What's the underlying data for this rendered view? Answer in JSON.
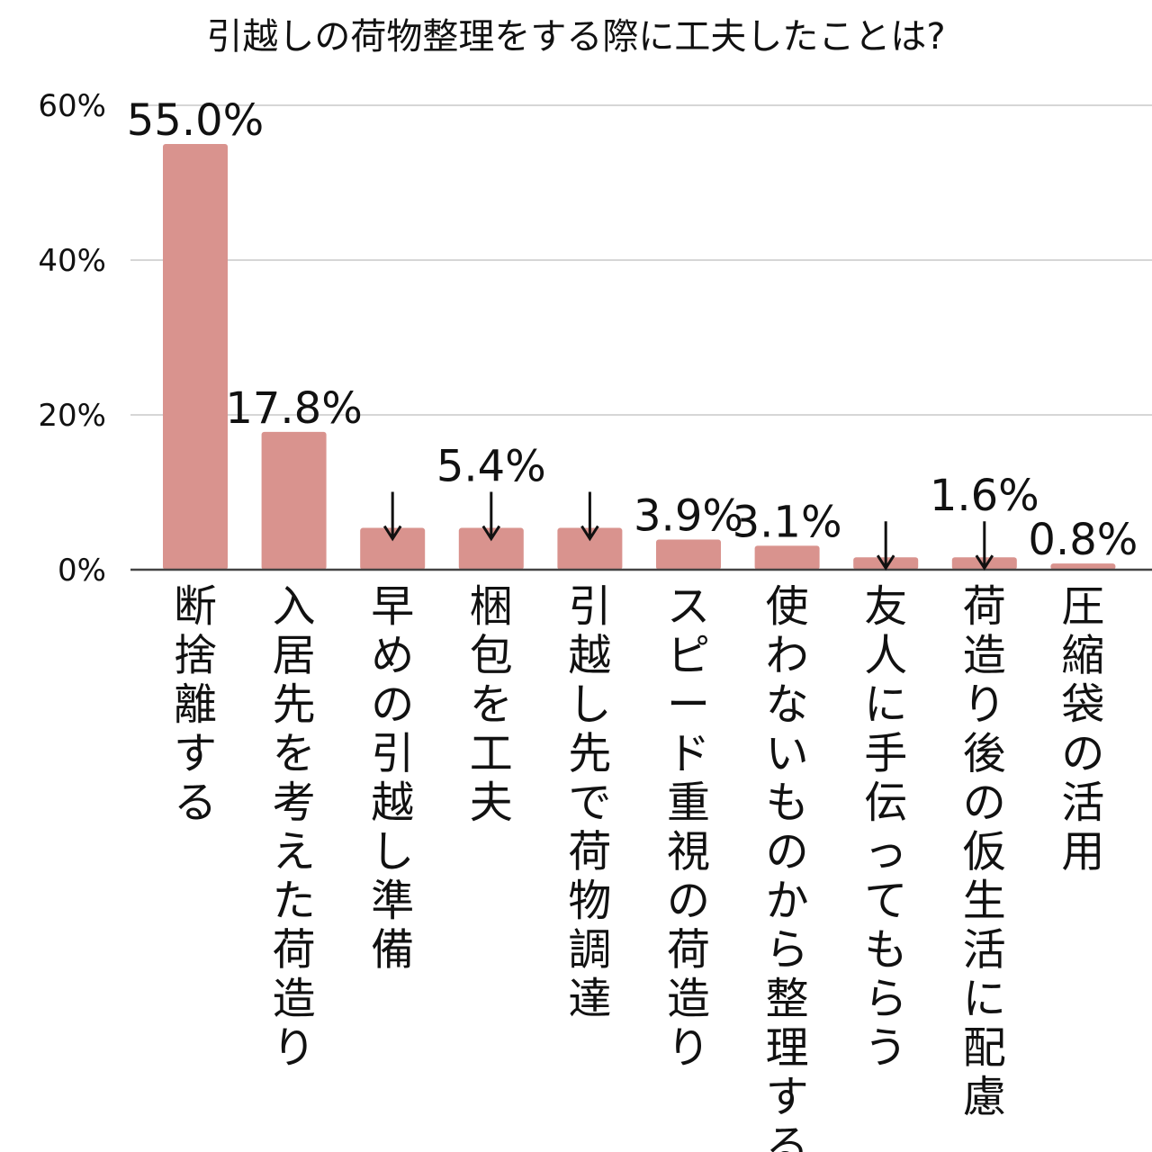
{
  "chart_data": {
    "type": "bar",
    "title": "引越しの荷物整理をする際に工夫したことは?",
    "xlabel": "",
    "ylabel": "",
    "ylim": [
      0,
      60
    ],
    "yticks": [
      0,
      20,
      40,
      60
    ],
    "ytick_labels": [
      "0%",
      "20%",
      "40%",
      "60%"
    ],
    "grid": true,
    "legend": "none",
    "bar_color": "#d9938e",
    "categories": [
      "断捨離する",
      "入居先を考えた荷造り",
      "早めの引越し準備",
      "梱包を工夫",
      "引越し先で荷物調達",
      "スピード重視の荷造り",
      "使わないものから整理する",
      "友人に手伝ってもらう",
      "荷造り後の仮生活に配慮",
      "圧縮袋の活用"
    ],
    "values": [
      55.0,
      17.8,
      5.4,
      5.4,
      5.4,
      3.9,
      3.1,
      1.6,
      1.6,
      0.8
    ],
    "data_labels": [
      "55.0%",
      "17.8%",
      "",
      "5.4%",
      "",
      "3.9%",
      "3.1%",
      "",
      "1.6%",
      "0.8%"
    ],
    "pointer_arrows": [
      false,
      false,
      true,
      true,
      true,
      false,
      false,
      true,
      true,
      false
    ],
    "pointer_glyph": "↓"
  }
}
